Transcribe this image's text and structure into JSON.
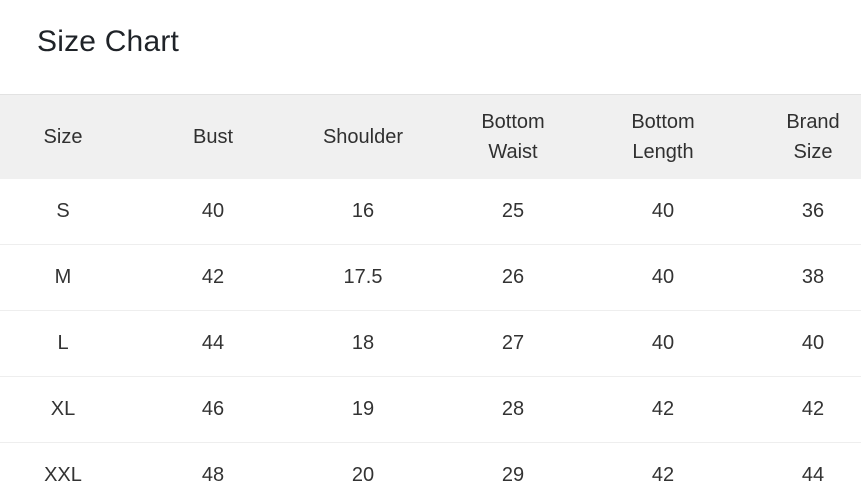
{
  "header": {
    "title": "Size Chart"
  },
  "table": {
    "columns": [
      "Size",
      "Bust",
      "Shoulder",
      "Bottom\nWaist",
      "Bottom\nLength",
      "Brand\nSize"
    ],
    "rows": [
      [
        "S",
        "40",
        "16",
        "25",
        "40",
        "36"
      ],
      [
        "M",
        "42",
        "17.5",
        "26",
        "40",
        "38"
      ],
      [
        "L",
        "44",
        "18",
        "27",
        "40",
        "40"
      ],
      [
        "XL",
        "46",
        "19",
        "28",
        "42",
        "42"
      ],
      [
        "XXL",
        "48",
        "20",
        "29",
        "42",
        "44"
      ]
    ]
  },
  "chart_data": {
    "type": "table",
    "title": "Size Chart",
    "columns": [
      "Size",
      "Bust",
      "Shoulder",
      "Bottom Waist",
      "Bottom Length",
      "Brand Size"
    ],
    "rows": [
      {
        "size": "S",
        "bust": 40,
        "shoulder": 16,
        "bottom_waist": 25,
        "bottom_length": 40,
        "brand_size": 36
      },
      {
        "size": "M",
        "bust": 42,
        "shoulder": 17.5,
        "bottom_waist": 26,
        "bottom_length": 40,
        "brand_size": 38
      },
      {
        "size": "L",
        "bust": 44,
        "shoulder": 18,
        "bottom_waist": 27,
        "bottom_length": 40,
        "brand_size": 40
      },
      {
        "size": "XL",
        "bust": 46,
        "shoulder": 19,
        "bottom_waist": 28,
        "bottom_length": 42,
        "brand_size": 42
      },
      {
        "size": "XXL",
        "bust": 48,
        "shoulder": 20,
        "bottom_waist": 29,
        "bottom_length": 42,
        "brand_size": 44
      }
    ]
  },
  "colors": {
    "header_bg": "#f0f0f0",
    "header_border_top": "#e2e2e2",
    "row_divider": "#eeeeee",
    "title_text": "#1f2328",
    "body_text": "#333333"
  }
}
